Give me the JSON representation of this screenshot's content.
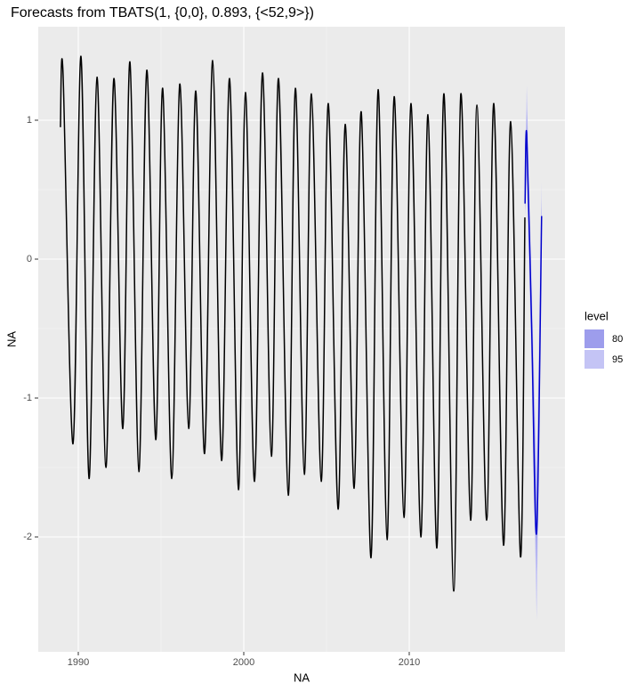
{
  "chart_data": {
    "type": "line",
    "title": "Forecasts from TBATS(1, {0,0}, 0.893, {<52,9>})",
    "x_label": "NA",
    "y_label": "NA",
    "xlim": [
      1987.58,
      2019.41
    ],
    "ylim": [
      -2.827,
      1.673
    ],
    "xticks": [
      1990,
      2000,
      2010
    ],
    "yticks": [
      -2,
      -1,
      0,
      1
    ],
    "grid": true,
    "history": {
      "color": "#000000",
      "x": [
        1988.92,
        1989.08,
        1989.68,
        1990.16,
        1990.65,
        1991.13,
        1991.67,
        1992.15,
        1992.69,
        1993.12,
        1993.66,
        1994.14,
        1994.68,
        1995.1,
        1995.65,
        1996.13,
        1996.67,
        1997.1,
        1997.63,
        1998.12,
        1998.66,
        1999.14,
        1999.68,
        2000.1,
        2000.65,
        2001.13,
        2001.67,
        2002.1,
        2002.69,
        2003.12,
        2003.66,
        2004.09,
        2004.68,
        2005.11,
        2005.7,
        2006.13,
        2006.67,
        2007.1,
        2007.69,
        2008.12,
        2008.66,
        2009.09,
        2009.68,
        2010.11,
        2010.7,
        2011.13,
        2011.67,
        2012.1,
        2012.69,
        2013.12,
        2013.71,
        2014.09,
        2014.68,
        2015.11,
        2015.7,
        2016.13,
        2016.72,
        2016.99
      ],
      "values": [
        0.95,
        1.33,
        -1.33,
        1.46,
        -1.58,
        1.31,
        -1.5,
        1.3,
        -1.22,
        1.42,
        -1.53,
        1.36,
        -1.3,
        1.23,
        -1.58,
        1.26,
        -1.22,
        1.21,
        -1.4,
        1.43,
        -1.45,
        1.3,
        -1.66,
        1.2,
        -1.6,
        1.34,
        -1.42,
        1.3,
        -1.7,
        1.23,
        -1.55,
        1.19,
        -1.6,
        1.12,
        -1.8,
        0.97,
        -1.65,
        1.06,
        -2.15,
        1.22,
        -2.02,
        1.17,
        -1.86,
        1.12,
        -2.0,
        1.04,
        -2.08,
        1.19,
        -2.39,
        1.19,
        -1.88,
        1.11,
        -1.88,
        1.12,
        -2.06,
        0.99,
        -2.14,
        0.3
      ]
    },
    "forecast": {
      "color": "#0000cc",
      "x": [
        2017.0,
        2017.1,
        2017.4,
        2017.7,
        2018.0
      ],
      "values": [
        0.4,
        0.9,
        -0.5,
        -1.97,
        0.31
      ],
      "legend_title": "level",
      "intervals": [
        {
          "name": "95",
          "color": "#c4c4f5",
          "lower": [
            0.3,
            0.6,
            -0.8,
            -2.6,
            0.1
          ],
          "upper": [
            0.5,
            1.25,
            -0.2,
            -1.55,
            0.55
          ]
        },
        {
          "name": "80",
          "color": "#9d9dec",
          "lower": [
            0.35,
            0.75,
            -0.65,
            -2.25,
            0.2
          ],
          "upper": [
            0.45,
            1.08,
            -0.35,
            -1.75,
            0.42
          ]
        }
      ]
    }
  }
}
